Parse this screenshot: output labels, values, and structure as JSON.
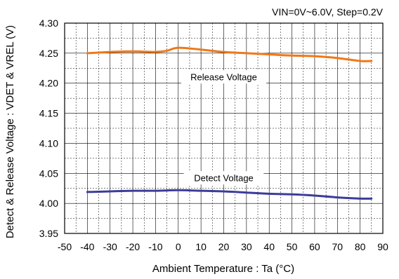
{
  "chart_data": {
    "type": "line",
    "condition": "VIN=0V~6.0V, Step=0.2V",
    "xlabel": "Ambient Temperature : Ta (°C)",
    "ylabel": "Detect & Release Voltage : VDET & VREL (V)",
    "xlim": [
      -50,
      90
    ],
    "ylim": [
      3.95,
      4.3
    ],
    "xticks": [
      "-50",
      "-40",
      "-30",
      "-20",
      "-10",
      "0",
      "10",
      "20",
      "30",
      "40",
      "50",
      "60",
      "70",
      "80",
      "90"
    ],
    "yticks": [
      "3.95",
      "4.00",
      "4.05",
      "4.10",
      "4.15",
      "4.20",
      "4.25",
      "4.30"
    ],
    "x_minor_grid": [
      -45,
      -35,
      -25,
      -15,
      -5,
      5,
      15,
      25,
      35,
      45,
      55,
      65,
      75,
      85
    ],
    "y_minor_grid": [
      3.975,
      4.025,
      4.075,
      4.125,
      4.175,
      4.225,
      4.275
    ],
    "grid": true,
    "series": [
      {
        "name": "Release Voltage",
        "color": "#f07818",
        "x": [
          -40,
          -30,
          -20,
          -10,
          -5,
          0,
          10,
          20,
          30,
          40,
          50,
          60,
          70,
          80,
          85
        ],
        "values": [
          4.25,
          4.252,
          4.253,
          4.252,
          4.254,
          4.259,
          4.256,
          4.252,
          4.25,
          4.248,
          4.246,
          4.245,
          4.242,
          4.237,
          4.237
        ]
      },
      {
        "name": "Detect Voltage",
        "color": "#3b3c9a",
        "x": [
          -40,
          -30,
          -20,
          -10,
          0,
          10,
          20,
          30,
          40,
          50,
          60,
          70,
          80,
          85
        ],
        "values": [
          4.019,
          4.02,
          4.021,
          4.021,
          4.022,
          4.021,
          4.02,
          4.018,
          4.016,
          4.015,
          4.013,
          4.01,
          4.008,
          4.008
        ]
      }
    ],
    "annotations": [
      {
        "text": "Release Voltage",
        "x": 20,
        "y": 4.21
      },
      {
        "text": "Detect Voltage",
        "x": 20,
        "y": 4.042
      }
    ]
  }
}
